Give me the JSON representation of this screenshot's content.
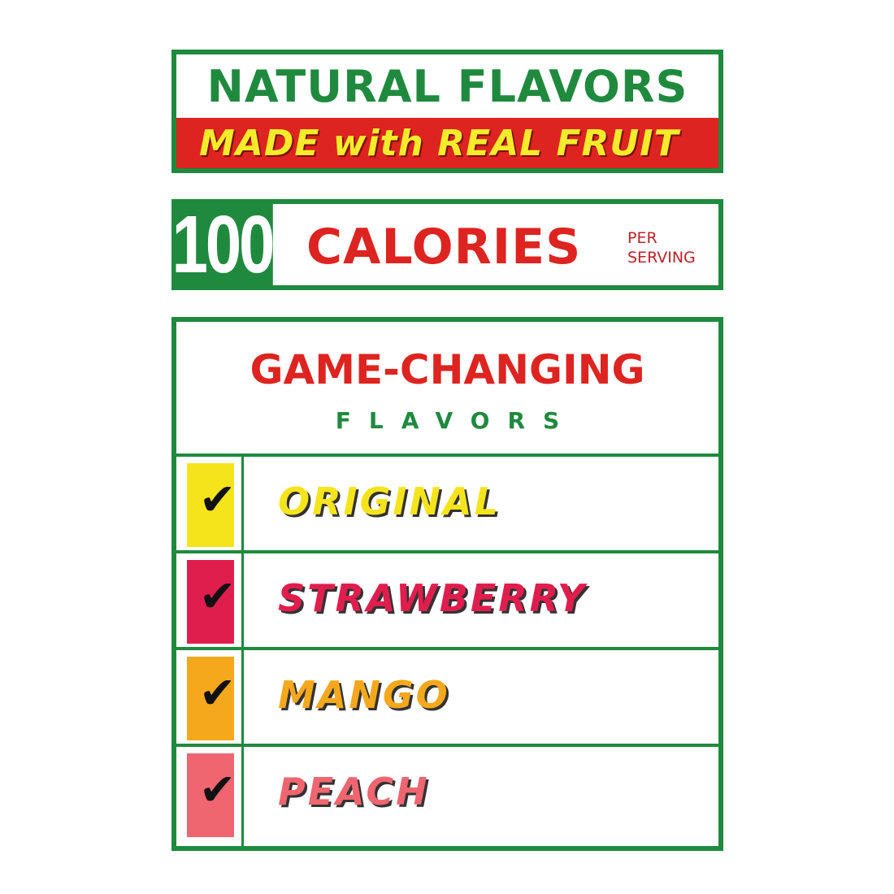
{
  "banner": {
    "title": "NATURAL FLAVORS",
    "subtitle": "MADE with REAL FRUIT"
  },
  "calories": {
    "number": "100",
    "label": "CALORIES",
    "per_line1": "PER",
    "per_line2": "SERVING"
  },
  "flavors_panel": {
    "heading": "GAME-CHANGING",
    "subheading": "FLAVORS",
    "items": [
      {
        "name": "ORIGINAL",
        "color": "#f5e41c",
        "checked": true
      },
      {
        "name": "STRAWBERRY",
        "color": "#e01e4e",
        "checked": true
      },
      {
        "name": "MANGO",
        "color": "#f5a81c",
        "checked": true
      },
      {
        "name": "PEACH",
        "color": "#ef6570",
        "checked": true
      }
    ]
  },
  "colors": {
    "green": "#1f8a3e",
    "red": "#dd2420",
    "yellow_text": "#f4ec2a"
  }
}
